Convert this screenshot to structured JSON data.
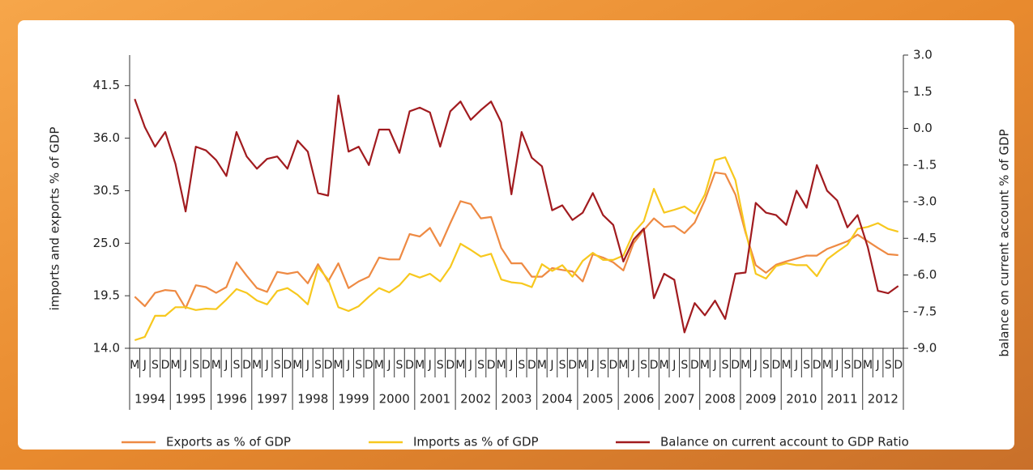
{
  "chart_data": {
    "type": "line",
    "y_label": "imports and exports % of GDP",
    "y2_label": "balance on current account % of GDP",
    "categories": [
      "M",
      "J",
      "S",
      "D",
      "M",
      "J",
      "S",
      "D",
      "M",
      "J",
      "S",
      "D",
      "M",
      "J",
      "S",
      "D",
      "M",
      "J",
      "S",
      "D",
      "M",
      "J",
      "S",
      "D",
      "M",
      "J",
      "S",
      "D",
      "M",
      "J",
      "S",
      "D",
      "M",
      "J",
      "S",
      "D",
      "M",
      "J",
      "S",
      "D",
      "M",
      "J",
      "S",
      "D",
      "M",
      "J",
      "S",
      "D",
      "M",
      "J",
      "S",
      "D",
      "M",
      "J",
      "S",
      "D",
      "M",
      "J",
      "S",
      "D",
      "M",
      "J",
      "S",
      "D",
      "M",
      "J",
      "S",
      "D",
      "M",
      "J",
      "S",
      "D",
      "M",
      "J",
      "S",
      "D"
    ],
    "year_labels": [
      "1994",
      "1995",
      "1996",
      "1997",
      "1998",
      "1999",
      "2000",
      "2001",
      "2002",
      "2003",
      "2004",
      "2005",
      "2006",
      "2007",
      "2008",
      "2009",
      "2010",
      "2011",
      "2012"
    ],
    "ylim": [
      14,
      44.7
    ],
    "yticks": [
      {
        "value": 14,
        "label": "14.0"
      },
      19.5,
      {
        "value": 25,
        "label": "25.0"
      },
      30.5,
      {
        "value": 36,
        "label": "36.0"
      },
      41.5
    ],
    "y2lim": [
      -9,
      3
    ],
    "y2ticks": [
      {
        "value": -9,
        "label": "-9.0"
      },
      -7.5,
      {
        "value": -6,
        "label": "-6.0"
      },
      -4.5,
      {
        "value": -3,
        "label": "-3.0"
      },
      -1.5,
      {
        "value": 0,
        "label": "0.0"
      },
      1.5,
      {
        "value": 3,
        "label": "3.0"
      }
    ],
    "series": [
      {
        "name": "Exports as % of GDP",
        "color": "#ee8a43",
        "values": [
          19.4,
          18.4,
          19.8,
          20.1,
          20.0,
          18.2,
          20.6,
          20.4,
          19.8,
          20.4,
          23.0,
          21.6,
          20.3,
          19.9,
          22.0,
          21.8,
          22.0,
          20.8,
          22.8,
          21.0,
          22.9,
          20.3,
          21.0,
          21.5,
          23.5,
          23.3,
          23.3,
          25.96,
          25.7,
          26.6,
          24.7,
          27.1,
          29.4,
          29.1,
          27.6,
          27.75,
          24.5,
          22.9,
          22.9,
          21.5,
          21.5,
          22.4,
          22.2,
          22.05,
          21.0,
          23.85,
          23.5,
          23.0,
          22.15,
          25.0,
          26.4,
          27.6,
          26.7,
          26.8,
          26.05,
          27.15,
          29.5,
          32.4,
          32.25,
          30.1,
          26.1,
          22.7,
          21.9,
          22.75,
          23.1,
          23.4,
          23.7,
          23.7,
          24.4,
          24.8,
          25.2,
          25.9,
          25.2,
          24.5,
          23.85,
          23.75
        ]
      },
      {
        "name": "Imports as % of GDP",
        "color": "#f7c81e",
        "values": [
          14.85,
          15.2,
          17.4,
          17.4,
          18.3,
          18.3,
          18.0,
          18.15,
          18.1,
          19.1,
          20.2,
          19.8,
          19.0,
          18.6,
          20.0,
          20.3,
          19.6,
          18.6,
          22.5,
          21.2,
          18.3,
          17.9,
          18.4,
          19.4,
          20.3,
          19.85,
          20.6,
          21.8,
          21.4,
          21.8,
          21.0,
          22.5,
          24.95,
          24.3,
          23.6,
          23.9,
          21.2,
          20.9,
          20.8,
          20.4,
          22.8,
          22.1,
          22.7,
          21.5,
          23.15,
          24.0,
          23.25,
          23.25,
          23.7,
          26.1,
          27.3,
          30.7,
          28.2,
          28.5,
          28.85,
          28.1,
          30.1,
          33.7,
          34.0,
          31.6,
          26.3,
          21.8,
          21.3,
          22.6,
          22.9,
          22.7,
          22.7,
          21.55,
          23.3,
          24.1,
          24.85,
          26.5,
          26.7,
          27.1,
          26.5,
          26.2
        ]
      },
      {
        "name": "Balance on current account to GDP Ratio",
        "color": "#a11b1f",
        "axis": "y2",
        "values": [
          1.2,
          0.05,
          -0.75,
          -0.15,
          -1.45,
          -3.4,
          -0.75,
          -0.9,
          -1.3,
          -1.95,
          -0.15,
          -1.15,
          -1.65,
          -1.25,
          -1.15,
          -1.65,
          -0.5,
          -0.95,
          -2.65,
          -2.75,
          1.35,
          -0.95,
          -0.75,
          -1.5,
          -0.05,
          -0.05,
          -1.0,
          0.7,
          0.85,
          0.65,
          -0.75,
          0.7,
          1.1,
          0.35,
          0.75,
          1.1,
          0.25,
          -2.7,
          -0.15,
          -1.2,
          -1.55,
          -3.35,
          -3.15,
          -3.75,
          -3.45,
          -2.65,
          -3.55,
          -3.95,
          -5.45,
          -4.55,
          -4.1,
          -6.95,
          -5.95,
          -6.2,
          -8.35,
          -7.15,
          -7.65,
          -7.05,
          -7.8,
          -5.95,
          -5.9,
          -3.05,
          -3.45,
          -3.55,
          -3.95,
          -2.55,
          -3.25,
          -1.5,
          -2.55,
          -2.95,
          -4.05,
          -3.55,
          -4.85,
          -6.65,
          -6.75,
          -6.45
        ]
      }
    ]
  }
}
